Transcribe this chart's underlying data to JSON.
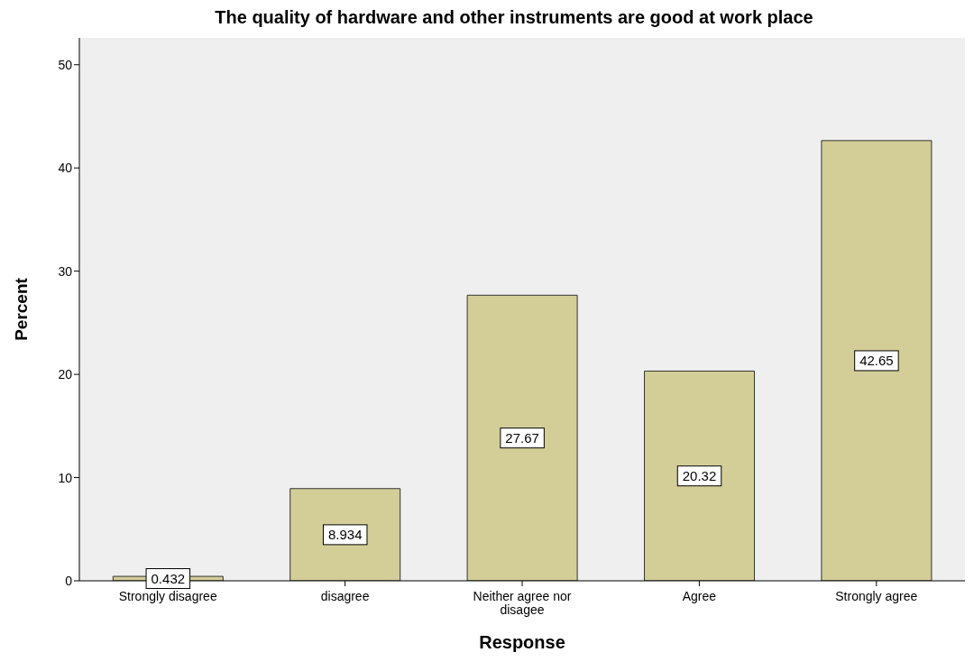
{
  "chart_data": {
    "type": "bar",
    "title": "The quality of hardware and other instruments are good at work place",
    "xlabel": "Response",
    "ylabel": "Percent",
    "categories": [
      "Strongly disagree",
      "disagree",
      "Neither agree nor disagee",
      "Agree",
      "Strongly agree"
    ],
    "values": [
      0.432,
      8.934,
      27.67,
      20.32,
      42.65
    ],
    "color": "#d3ce97",
    "ylim": [
      0,
      52.6
    ],
    "yticks": [
      0,
      10,
      20,
      30,
      40,
      50
    ],
    "data_labels": true,
    "grid": false,
    "legend": false
  }
}
